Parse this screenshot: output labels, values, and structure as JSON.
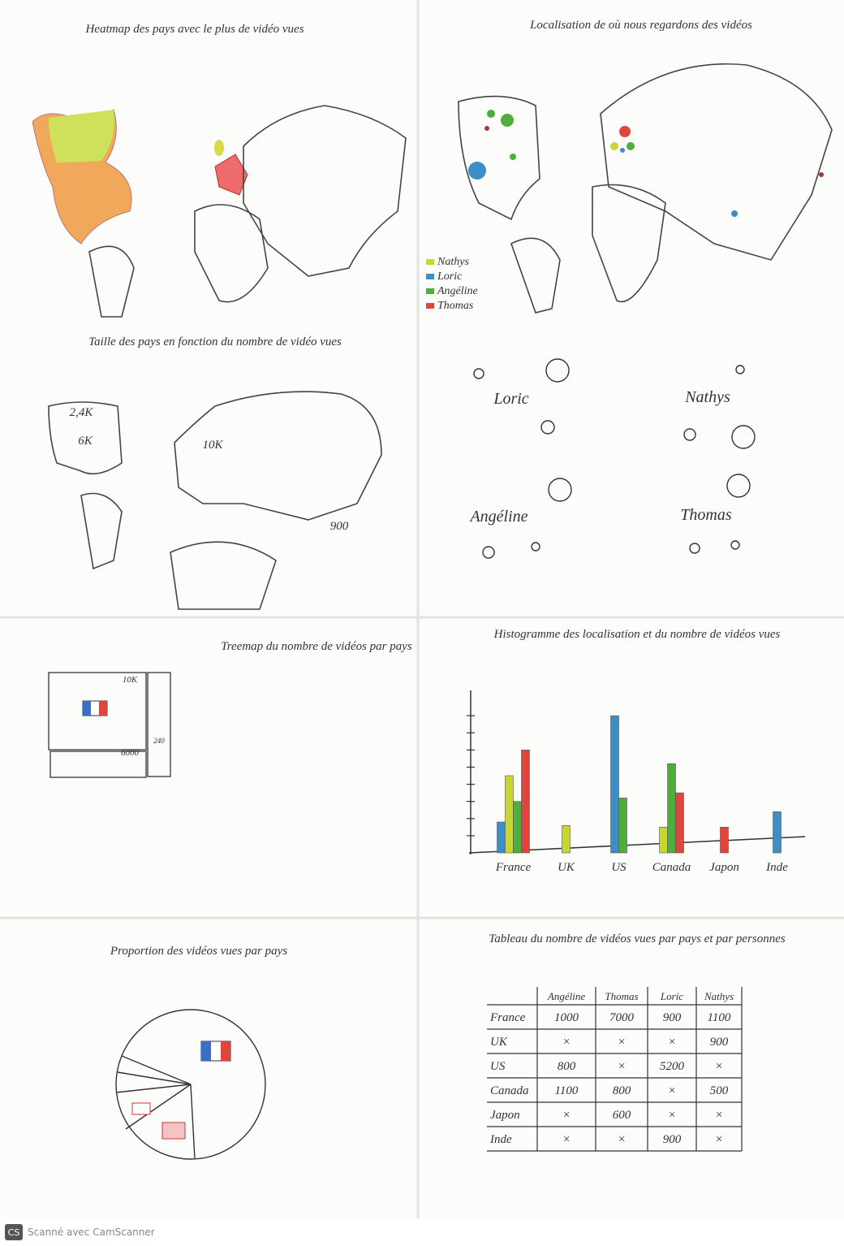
{
  "panels": {
    "heatmap": {
      "title": "Heatmap des pays avec le plus de vidéo vues"
    },
    "localisation": {
      "title": "Localisation de où nous regardons des vidéos",
      "legend": [
        {
          "name": "Nathys",
          "color": "#c8d62e"
        },
        {
          "name": "Loric",
          "color": "#3a8fc8"
        },
        {
          "name": "Angéline",
          "color": "#4caf3a"
        },
        {
          "name": "Thomas",
          "color": "#e0443a"
        }
      ]
    },
    "size_map": {
      "title": "Taille des pays en fonction du nombre de vidéo vues",
      "labels": [
        "2,4K",
        "6K",
        "10K",
        "900"
      ]
    },
    "people": {
      "names": [
        "Loric",
        "Nathys",
        "Angéline",
        "Thomas"
      ]
    },
    "treemap": {
      "title": "Treemap du nombre de vidéos par pays",
      "labels": [
        "10K",
        "6000",
        "240"
      ]
    },
    "pie": {
      "title": "Proportion des vidéos vues par pays"
    },
    "table": {
      "title": "Tableau du nombre de vidéos vues par pays et par personnes",
      "header": [
        "Angéline",
        "Thomas",
        "Loric",
        "Nathys"
      ],
      "rows": [
        [
          "France",
          "1000",
          "7000",
          "900",
          "1100"
        ],
        [
          "UK",
          "×",
          "×",
          "×",
          "900"
        ],
        [
          "US",
          "800",
          "×",
          "5200",
          "×"
        ],
        [
          "Canada",
          "1100",
          "800",
          "×",
          "500"
        ],
        [
          "Japon",
          "×",
          "600",
          "×",
          "×"
        ],
        [
          "Inde",
          "×",
          "×",
          "900",
          "×"
        ]
      ]
    }
  },
  "chart_data": {
    "type": "bar",
    "title": "Histogramme des localisation et du nombre de vidéos vues",
    "categories": [
      "France",
      "UK",
      "US",
      "Canada",
      "Japon",
      "Inde"
    ],
    "series": [
      {
        "name": "Loric",
        "color": "#3a8fc8",
        "values": [
          1.8,
          null,
          8,
          null,
          null,
          2.4
        ]
      },
      {
        "name": "Nathys",
        "color": "#c8d62e",
        "values": [
          4.5,
          1.6,
          null,
          1.5,
          null,
          null
        ]
      },
      {
        "name": "Angéline",
        "color": "#4caf3a",
        "values": [
          3,
          null,
          3.2,
          5.2,
          null,
          null
        ]
      },
      {
        "name": "Thomas",
        "color": "#e0443a",
        "values": [
          6,
          null,
          null,
          3.5,
          1.5,
          null
        ]
      }
    ],
    "ylim": [
      0,
      9
    ],
    "yticks": [
      1,
      2,
      3,
      4,
      5,
      6,
      7,
      8
    ]
  },
  "footer": {
    "badge": "CS",
    "text": "Scanné avec CamScanner"
  }
}
